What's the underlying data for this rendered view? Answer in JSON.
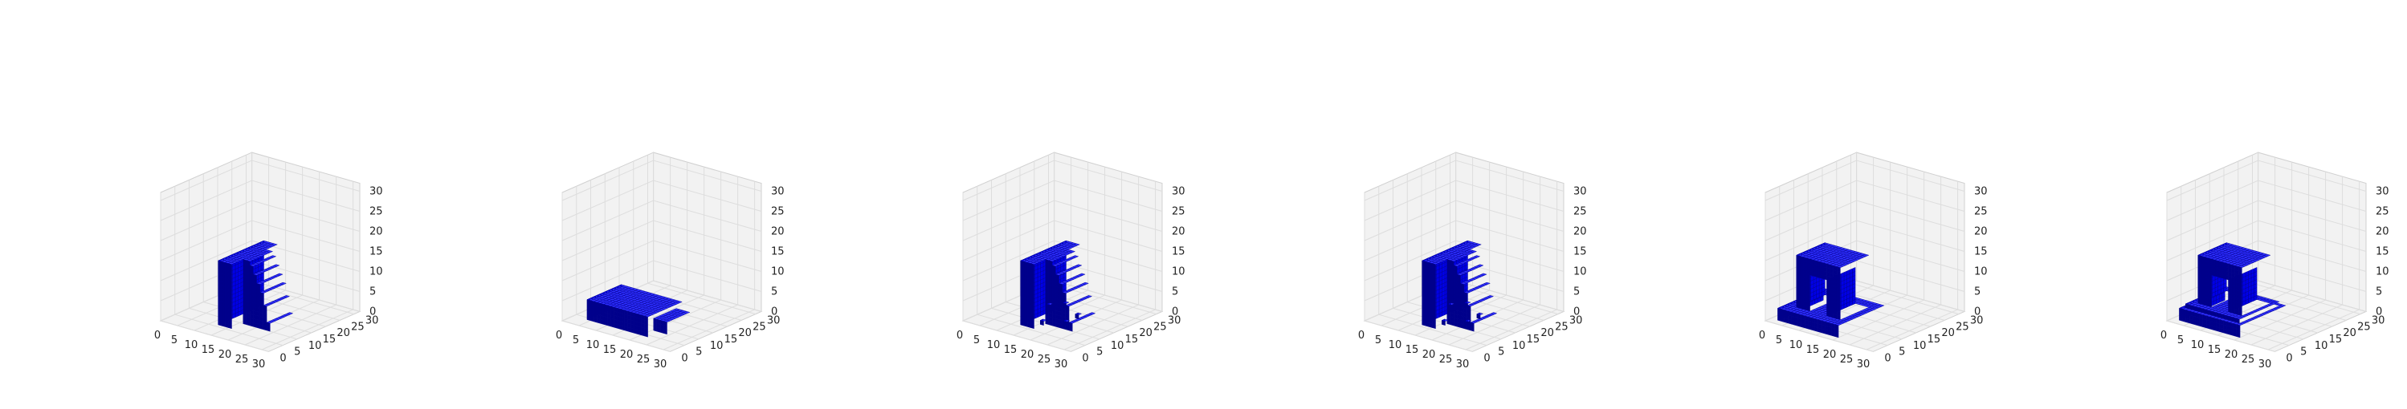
{
  "figure": {
    "panel_count": 6,
    "ticks": {
      "x": [
        "0",
        "5",
        "10",
        "15",
        "20",
        "25",
        "30"
      ],
      "y": [
        "0",
        "5",
        "10",
        "15",
        "20",
        "25",
        "30"
      ],
      "z": [
        "0",
        "5",
        "10",
        "15",
        "20",
        "25",
        "30"
      ]
    },
    "axis_range": [
      0,
      32
    ],
    "grid": true,
    "pane_color": "#f2f2f2",
    "pane_edge_color": "#d0d0d0",
    "grid_color": "#dddddd",
    "voxel_color": "#0000ff",
    "voxel_edge_color": "#00008b"
  },
  "panels": [
    {
      "shape": "tall-slab-with-curved-back-support"
    },
    {
      "shape": "flat-rectangular-seat-block"
    },
    {
      "shape": "tall-slab-with-scattered-voxels"
    },
    {
      "shape": "tall-slab-with-scattered-voxels"
    },
    {
      "shape": "arched-frame-on-wide-base"
    },
    {
      "shape": "arched-frame-on-stepped-base"
    }
  ]
}
